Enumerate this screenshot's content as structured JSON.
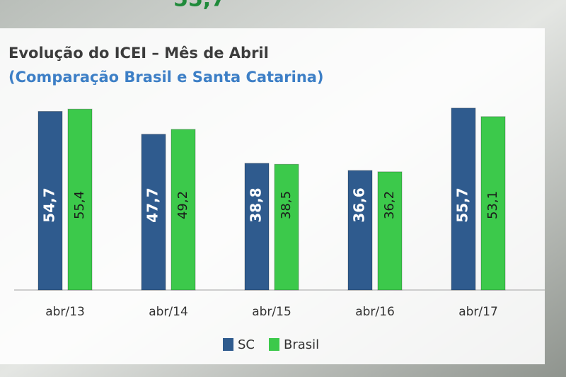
{
  "header_fragment": "55,7",
  "chart_data": {
    "type": "bar",
    "title": "Evolução do ICEI – Mês de Abril",
    "subtitle": "(Comparação Brasil e Santa Catarina)",
    "categories": [
      "abr/13",
      "abr/14",
      "abr/15",
      "abr/16",
      "abr/17"
    ],
    "series": [
      {
        "name": "SC",
        "color": "#2f5b8e",
        "values": [
          54.7,
          47.7,
          38.8,
          36.6,
          55.7
        ],
        "value_labels": [
          "54,7",
          "47,7",
          "38,8",
          "36,6",
          "55,7"
        ]
      },
      {
        "name": "Brasil",
        "color": "#3cc94b",
        "values": [
          55.4,
          49.2,
          38.5,
          36.2,
          53.1
        ],
        "value_labels": [
          "55,4",
          "49,2",
          "38,5",
          "36,2",
          "53,1"
        ]
      }
    ],
    "ylim": [
      0,
      60
    ],
    "legend": "bottom"
  }
}
